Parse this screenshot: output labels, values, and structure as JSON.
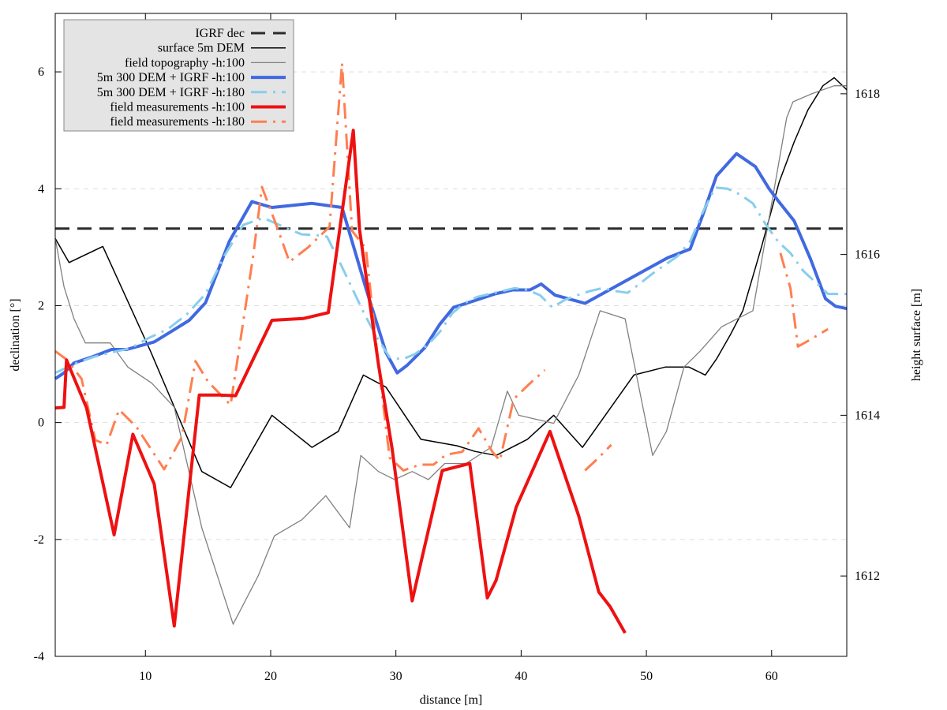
{
  "chart_data": {
    "type": "line",
    "xlabel": "distance [m]",
    "ylabel": "declination [°]",
    "y2label": "height surface [m]",
    "xlim": [
      2.8,
      66
    ],
    "ylim": [
      -4,
      7
    ],
    "y2lim": [
      1611,
      1619
    ],
    "xticks": [
      10,
      20,
      30,
      40,
      50,
      60
    ],
    "yticks": [
      -4,
      -2,
      0,
      2,
      4,
      6
    ],
    "y2ticks": [
      1612,
      1614,
      1616,
      1618
    ],
    "grid": "horizontal dashed",
    "legend_position": "top-left",
    "series": [
      {
        "name": "IGRF dec",
        "axis": "y",
        "color": "#2b2b2b",
        "style": "dashed",
        "width": 3,
        "x": [
          2.8,
          66
        ],
        "y": [
          3.32,
          3.32
        ]
      },
      {
        "name": "surface 5m DEM",
        "axis": "y2",
        "color": "#000000",
        "style": "solid",
        "width": 1.5,
        "x": [
          2.8,
          3.9,
          6.6,
          10.4,
          14.5,
          16.8,
          20.1,
          23.3,
          25.4,
          27.4,
          29.2,
          32.0,
          34.9,
          36.3,
          38.0,
          40.5,
          42.6,
          44.9,
          49.0,
          51.5,
          53.4,
          54.7,
          55.6,
          56.7,
          57.7,
          59.2,
          60.6,
          61.8,
          62.9,
          64.1,
          65.0,
          66.0
        ],
        "y": [
          1616.2,
          1615.9,
          1616.1,
          1614.8,
          1613.3,
          1613.1,
          1614.0,
          1613.6,
          1613.8,
          1614.5,
          1614.35,
          1613.7,
          1613.62,
          1613.55,
          1613.5,
          1613.7,
          1614.0,
          1613.6,
          1614.5,
          1614.6,
          1614.6,
          1614.5,
          1614.7,
          1615.0,
          1615.3,
          1616.1,
          1616.9,
          1617.4,
          1617.8,
          1618.1,
          1618.2,
          1618.05
        ]
      },
      {
        "name": "field topography -h:100",
        "axis": "y2",
        "color": "#808080",
        "style": "solid",
        "width": 1.3,
        "x": [
          2.8,
          3.5,
          4.3,
          5.2,
          7.2,
          8.6,
          10.5,
          12.3,
          14.5,
          17.0,
          19.0,
          20.3,
          22.5,
          24.4,
          26.3,
          27.2,
          28.6,
          29.9,
          31.3,
          32.6,
          33.9,
          35.6,
          37.6,
          38.9,
          39.8,
          42.6,
          44.6,
          46.3,
          48.3,
          50.5,
          51.6,
          53.0,
          54.3,
          56.0,
          58.5,
          61.2,
          61.7,
          63.2,
          65.0,
          66.0
        ],
        "y": [
          1616.2,
          1615.6,
          1615.2,
          1614.9,
          1614.9,
          1614.6,
          1614.4,
          1614.1,
          1612.6,
          1611.4,
          1612.0,
          1612.5,
          1612.7,
          1613.0,
          1612.6,
          1613.5,
          1613.3,
          1613.2,
          1613.3,
          1613.2,
          1613.4,
          1613.4,
          1613.6,
          1614.3,
          1614.0,
          1613.9,
          1614.5,
          1615.3,
          1615.2,
          1613.5,
          1613.8,
          1614.6,
          1614.8,
          1615.1,
          1615.3,
          1617.7,
          1617.9,
          1618.0,
          1618.1,
          1618.1
        ]
      },
      {
        "name": "5m 300 DEM + IGRF -h:100",
        "axis": "y",
        "color": "#4169e1",
        "style": "solid",
        "width": 4,
        "x": [
          2.8,
          3.5,
          4.3,
          5.7,
          7.3,
          8.5,
          10.7,
          12.0,
          13.5,
          14.8,
          16.7,
          18.5,
          20.1,
          23.3,
          25.7,
          27.6,
          29.2,
          30.1,
          30.9,
          32.3,
          33.5,
          34.6,
          36.2,
          37.9,
          39.3,
          40.7,
          41.6,
          42.7,
          45.1,
          47.3,
          49.5,
          51.7,
          53.5,
          54.5,
          55.6,
          57.2,
          58.7,
          59.8,
          60.5,
          61.8,
          63.1,
          64.3,
          65.1,
          66.0
        ],
        "y": [
          0.75,
          0.85,
          1.02,
          1.12,
          1.25,
          1.25,
          1.38,
          1.55,
          1.75,
          2.05,
          3.1,
          3.78,
          3.68,
          3.75,
          3.68,
          2.3,
          1.2,
          0.85,
          0.98,
          1.28,
          1.68,
          1.97,
          2.08,
          2.2,
          2.27,
          2.27,
          2.37,
          2.18,
          2.04,
          2.3,
          2.56,
          2.82,
          2.97,
          3.55,
          4.22,
          4.6,
          4.38,
          4.0,
          3.8,
          3.45,
          2.8,
          2.12,
          1.99,
          1.95
        ]
      },
      {
        "name": "5m 300 DEM + IGRF -h:180",
        "axis": "y",
        "color": "#87ceeb",
        "style": "dash-dot",
        "width": 3,
        "x": [
          2.8,
          4.3,
          5.8,
          7.3,
          8.8,
          10.3,
          11.8,
          13.3,
          14.8,
          16.3,
          17.8,
          19.4,
          20.5,
          21.5,
          22.5,
          23.5,
          24.5,
          25.5,
          26.5,
          27.5,
          28.5,
          29.5,
          30.5,
          31.5,
          32.5,
          33.5,
          34.5,
          35.5,
          36.5,
          37.5,
          38.5,
          39.5,
          40.5,
          41.5,
          42.5,
          43.5,
          44.5,
          45.5,
          46.5,
          47.5,
          48.5,
          49.5,
          50.5,
          51.5,
          52.5,
          53.5,
          54.5,
          55.5,
          56.5,
          57.5,
          58.5,
          59.5,
          60.5,
          61.5,
          62.5,
          63.5,
          64.5,
          65.3,
          66.0
        ],
        "y": [
          0.85,
          1.0,
          1.12,
          1.2,
          1.27,
          1.45,
          1.6,
          1.85,
          2.2,
          2.85,
          3.38,
          3.5,
          3.4,
          3.3,
          3.22,
          3.21,
          3.18,
          2.75,
          2.3,
          1.85,
          1.45,
          1.12,
          1.08,
          1.17,
          1.32,
          1.55,
          1.87,
          2.05,
          2.15,
          2.2,
          2.25,
          2.3,
          2.27,
          2.18,
          1.97,
          2.1,
          2.18,
          2.25,
          2.3,
          2.25,
          2.22,
          2.38,
          2.55,
          2.7,
          2.85,
          3.1,
          3.6,
          4.02,
          4.0,
          3.9,
          3.75,
          3.4,
          3.1,
          2.9,
          2.6,
          2.4,
          2.2,
          2.2,
          2.2
        ]
      },
      {
        "name": "field measurements -h:100",
        "axis": "y",
        "color": "#ee1111",
        "style": "solid",
        "width": 4,
        "x": [
          2.8,
          3.5,
          3.7,
          5.3,
          7.5,
          9.0,
          10.7,
          12.3,
          14.3,
          15.9,
          17.2,
          20.1,
          22.6,
          24.6,
          26.6,
          27.1,
          28.6,
          29.7,
          31.3,
          32.1,
          33.7,
          35.9,
          37.3,
          38.0,
          39.6,
          42.3,
          44.6,
          46.2,
          47.1,
          48.3
        ],
        "y": [
          0.25,
          0.26,
          1.07,
          0.25,
          -1.92,
          -0.2,
          -1.05,
          -3.48,
          0.47,
          0.47,
          0.46,
          1.75,
          1.78,
          1.88,
          5.0,
          3.3,
          1.0,
          -0.45,
          -3.05,
          -2.3,
          -0.82,
          -0.7,
          -3.0,
          -2.7,
          -1.45,
          -0.15,
          -1.6,
          -2.9,
          -3.15,
          -3.6
        ]
      },
      {
        "name": "field measurements -h:180",
        "axis": "y",
        "color": "#ff7f50",
        "style": "dash-dot",
        "width": 3,
        "segments": [
          {
            "x": [
              2.8,
              3.7,
              4.9,
              6.0,
              6.9,
              7.9,
              9.3,
              11.5,
              12.9,
              14.0,
              15.0,
              16.8,
              18.6,
              19.3,
              20.5,
              21.5,
              23.0,
              24.7,
              25.7,
              26.5,
              27.6,
              28.6,
              29.5,
              30.6,
              31.9,
              33.0,
              34.0,
              35.3,
              36.6,
              37.7,
              38.3,
              39.4,
              40.6,
              41.9
            ],
            "y": [
              1.22,
              1.08,
              0.75,
              -0.3,
              -0.38,
              0.22,
              -0.08,
              -0.8,
              -0.25,
              1.05,
              0.7,
              0.3,
              2.85,
              4.03,
              3.35,
              2.75,
              3.0,
              3.35,
              6.15,
              3.28,
              2.98,
              1.0,
              -0.6,
              -0.82,
              -0.72,
              -0.72,
              -0.55,
              -0.5,
              -0.1,
              -0.5,
              -0.65,
              0.4,
              0.65,
              0.9
            ]
          },
          {
            "x": [
              45.1,
              46.1,
              47.2
            ],
            "y": [
              -0.82,
              -0.62,
              -0.38
            ]
          },
          {
            "x": [
              60.7,
              61.5,
              62.1,
              63.1,
              64.5
            ],
            "y": [
              2.9,
              2.3,
              1.3,
              1.42,
              1.6
            ]
          }
        ]
      }
    ]
  }
}
